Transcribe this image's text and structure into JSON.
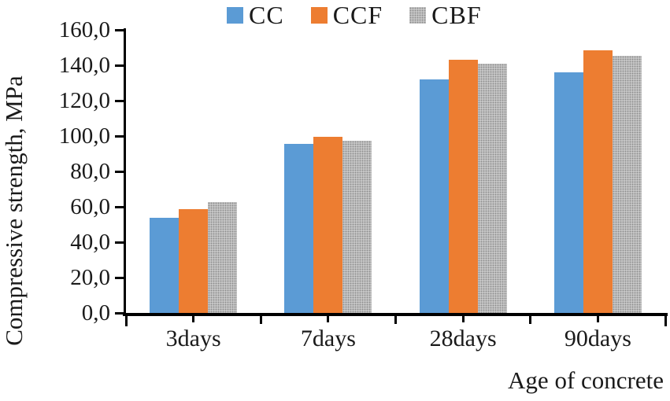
{
  "chart_data": {
    "type": "bar",
    "title": "",
    "categories": [
      "3days",
      "7days",
      "28days",
      "90days"
    ],
    "series": [
      {
        "name": "CC",
        "color": "#5b9bd5",
        "pattern": false,
        "values": [
          54.0,
          95.5,
          132.0,
          136.0
        ]
      },
      {
        "name": "CCF",
        "color": "#ed7d31",
        "pattern": false,
        "values": [
          58.5,
          99.5,
          143.0,
          148.5
        ]
      },
      {
        "name": "CBF",
        "color": "#bfbfbf",
        "pattern": true,
        "values": [
          62.5,
          97.5,
          141.0,
          145.5
        ]
      }
    ],
    "xlabel": "Age of concrete",
    "ylabel": "Compressive strength, MPa",
    "ylim": [
      0,
      160
    ],
    "ytick_step": 20,
    "ytick_labels": [
      "0,0",
      "20,0",
      "40,0",
      "60,0",
      "80,0",
      "100,0",
      "120,0",
      "140,0",
      "160,0"
    ],
    "legend_position": "top-center",
    "grid": false,
    "decimal_separator": ","
  }
}
